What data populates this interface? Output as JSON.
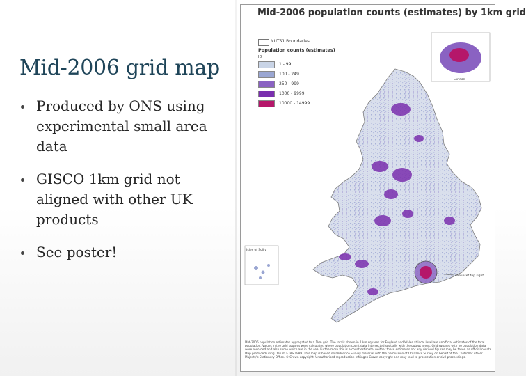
{
  "slide": {
    "title": "Mid-2006 grid map",
    "bullets": [
      "Produced by ONS using experimental small area data",
      "GISCO 1km grid not aligned with other UK products",
      "See poster!"
    ]
  },
  "poster": {
    "title": "Mid-2006 population counts (estimates) by 1km grid",
    "legend": {
      "boundary_label": "NUTS1 Boundaries",
      "heading": "Population counts (estimates)",
      "unit": "ID",
      "classes": [
        {
          "label": "1 - 99",
          "color": "#c9d4e6"
        },
        {
          "label": "100 - 249",
          "color": "#9aa6d2"
        },
        {
          "label": "250 - 999",
          "color": "#8a62c2"
        },
        {
          "label": "1000 - 9999",
          "color": "#7a2fae"
        },
        {
          "label": "10000 - 14999",
          "color": "#b5176a"
        }
      ]
    },
    "inset_labels": {
      "london": "London",
      "isles_of_scilly": "Isles of Scilly",
      "see_inset": "see inset top right"
    },
    "footnote": "Mid-2006 population estimates aggregated to a 1km grid. The totals shown in 1 km squares for England and Wales at local level are unofficial estimates of the total population. Values in the grid squares were calculated where population count data intersected spatially with the output areas. Grid squares with no population data were recorded and also some which are in the sea. Furthermore this is a count estimate; neither these estimates nor any derived figures may be taken as official counts. Map produced using Datum ETRS 1989. This map is based on Ordnance Survey material with the permission of Ordnance Survey on behalf of the Controller of Her Majesty's Stationery Office. © Crown copyright. Unauthorised reproduction infringes Crown copyright and may lead to prosecution or civil proceedings."
  }
}
